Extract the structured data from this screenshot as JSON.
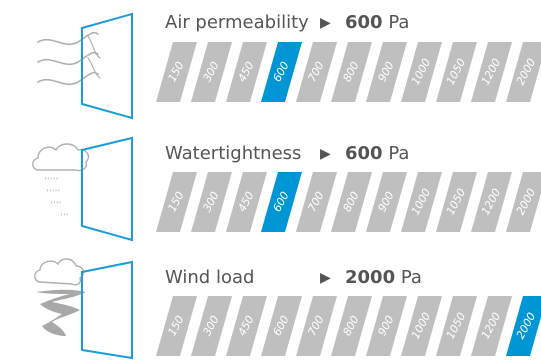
{
  "colors": {
    "bar_gray": "#bfbfbf",
    "bar_selected": "#0096d6",
    "frame_blue": "#1a9cd8",
    "icon_gray": "#b0b0b0",
    "text_gray": "#555555"
  },
  "rows": [
    {
      "id": "air",
      "title": "Air permeability",
      "value": "600",
      "unit": "Pa",
      "icon": "wind-lines-icon",
      "levels": [
        "150",
        "300",
        "450",
        "600",
        "700",
        "800",
        "900",
        "1000",
        "1050",
        "1200",
        "2000"
      ],
      "selected_index": 3
    },
    {
      "id": "water",
      "title": "Watertightness",
      "value": "600",
      "unit": "Pa",
      "icon": "rain-cloud-icon",
      "levels": [
        "150",
        "300",
        "450",
        "600",
        "700",
        "800",
        "900",
        "1000",
        "1050",
        "1200",
        "2000"
      ],
      "selected_index": 3
    },
    {
      "id": "wind",
      "title": "Wind load",
      "value": "2000",
      "unit": "Pa",
      "icon": "tornado-icon",
      "levels": [
        "150",
        "300",
        "450",
        "600",
        "700",
        "800",
        "900",
        "1000",
        "1050",
        "1200",
        "2000"
      ],
      "selected_index": 10
    }
  ]
}
